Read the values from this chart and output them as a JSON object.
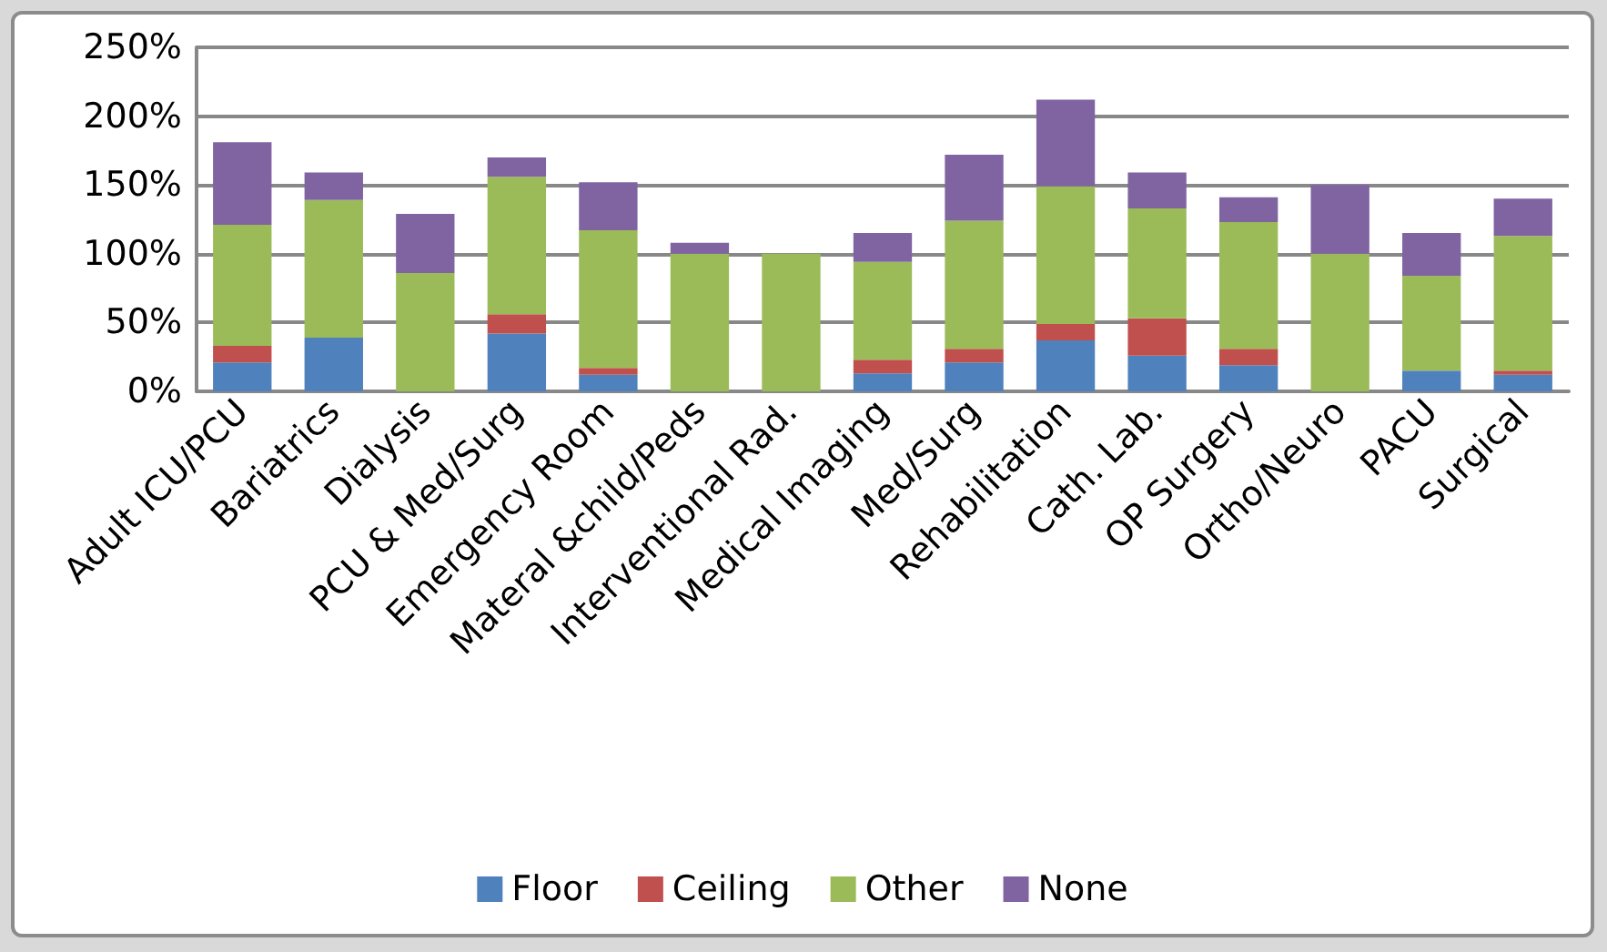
{
  "chart_data": {
    "type": "bar",
    "stacked": true,
    "categories": [
      "Adult ICU/PCU",
      "Bariatrics",
      "Dialysis",
      "PCU & Med/Surg",
      "Emergency Room",
      "Materal &child/Peds",
      "Interventional Rad.",
      "Medical Imaging",
      "Med/Surg",
      "Rehabilitation",
      "Cath. Lab.",
      "OP Surgery",
      "Ortho/Neuro",
      "PACU",
      "Surgical"
    ],
    "series": [
      {
        "name": "Floor",
        "color": "#4f81bd",
        "values": [
          21,
          39,
          0,
          42,
          12,
          0,
          0,
          13,
          21,
          37,
          26,
          19,
          0,
          15,
          12
        ]
      },
      {
        "name": "Ceiling",
        "color": "#c0504d",
        "values": [
          12,
          0,
          0,
          14,
          5,
          0,
          0,
          10,
          10,
          12,
          27,
          12,
          0,
          0,
          3
        ]
      },
      {
        "name": "Other",
        "color": "#9bbb59",
        "values": [
          88,
          100,
          86,
          100,
          100,
          100,
          100,
          71,
          93,
          100,
          80,
          92,
          100,
          69,
          98
        ]
      },
      {
        "name": "None",
        "color": "#8064a2",
        "values": [
          60,
          20,
          43,
          14,
          35,
          8,
          0,
          21,
          48,
          63,
          26,
          18,
          50,
          31,
          27
        ]
      }
    ],
    "ylim": [
      0,
      250
    ],
    "yticks": [
      {
        "value": 0,
        "label": "0%"
      },
      {
        "value": 50,
        "label": "50%"
      },
      {
        "value": 100,
        "label": "100%"
      },
      {
        "value": 150,
        "label": "150%"
      },
      {
        "value": 200,
        "label": "200%"
      },
      {
        "value": 250,
        "label": "250%"
      }
    ],
    "grid": "y",
    "legend": "bottom"
  }
}
